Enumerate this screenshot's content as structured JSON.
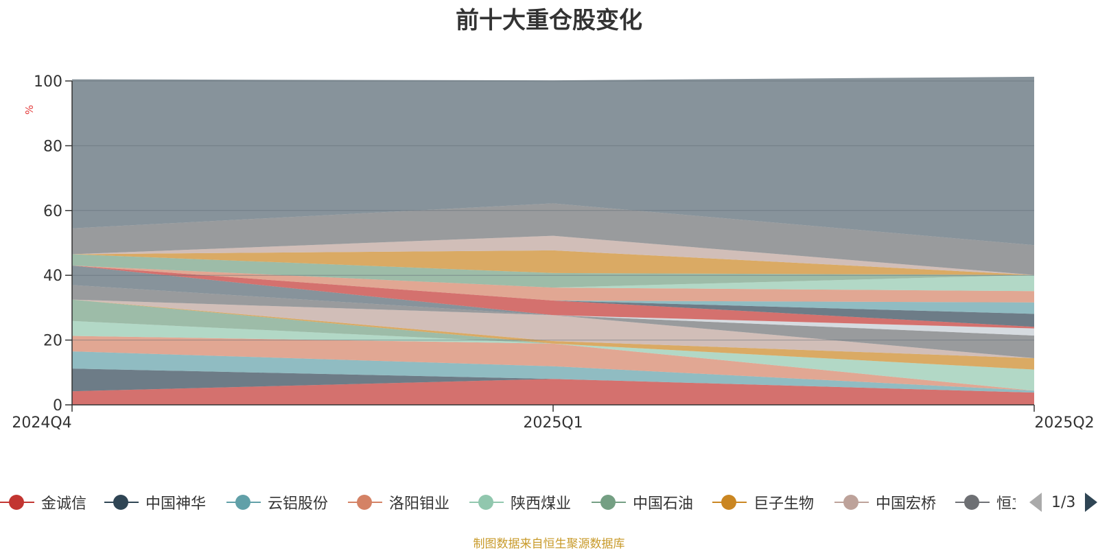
{
  "chart_data": {
    "type": "area",
    "stacked": true,
    "title": "前十大重仓股变化",
    "ylabel": "%",
    "ylim": [
      0,
      100
    ],
    "yticks": [
      0,
      20,
      40,
      60,
      80,
      100
    ],
    "categories": [
      "2024Q4",
      "2025Q1",
      "2025Q2"
    ],
    "series": [
      {
        "name": "金诚信",
        "color": "#c23531",
        "values": [
          4.2,
          8.0,
          3.8
        ]
      },
      {
        "name": "中国神华",
        "color": "#2f4554",
        "values": [
          7.0,
          0.0,
          0.0
        ]
      },
      {
        "name": "云铝股份",
        "color": "#61a0a8",
        "values": [
          5.3,
          3.9,
          0.6
        ]
      },
      {
        "name": "洛阳钼业",
        "color": "#d48265",
        "values": [
          4.8,
          7.0,
          0.0
        ]
      },
      {
        "name": "陕西煤业",
        "color": "#91c7ae",
        "values": [
          4.6,
          0.0,
          6.5
        ]
      },
      {
        "name": "中国石油",
        "color": "#749f83",
        "values": [
          6.6,
          0.0,
          0.0
        ]
      },
      {
        "name": "巨子生物",
        "color": "#ca8622",
        "values": [
          0.0,
          0.8,
          3.5
        ]
      },
      {
        "name": "中国宏桥",
        "color": "#bda29a",
        "values": [
          0.0,
          8.0,
          0.0
        ]
      },
      {
        "name": "恒立液压",
        "color": "#6e7074",
        "values": [
          4.5,
          0.0,
          7.0
        ]
      },
      {
        "name": "",
        "color": "#546570",
        "values": [
          6.0,
          0.0,
          0.0
        ]
      },
      {
        "name": "",
        "color": "#c4ccd3",
        "values": [
          0.0,
          0.0,
          2.2
        ]
      },
      {
        "name": "",
        "color": "#c23531",
        "values": [
          0.0,
          4.5,
          0.5
        ]
      },
      {
        "name": "",
        "color": "#2f4554",
        "values": [
          0.0,
          0.0,
          4.0
        ]
      },
      {
        "name": "",
        "color": "#61a0a8",
        "values": [
          0.0,
          0.0,
          3.5
        ]
      },
      {
        "name": "",
        "color": "#d48265",
        "values": [
          0.0,
          4.0,
          3.5
        ]
      },
      {
        "name": "",
        "color": "#91c7ae",
        "values": [
          0.0,
          0.0,
          5.0
        ]
      },
      {
        "name": "",
        "color": "#749f83",
        "values": [
          3.5,
          4.5,
          0.0
        ]
      },
      {
        "name": "",
        "color": "#ca8622",
        "values": [
          0.0,
          7.0,
          0.0
        ]
      },
      {
        "name": "",
        "color": "#bda29a",
        "values": [
          0.0,
          4.5,
          0.0
        ]
      },
      {
        "name": "",
        "color": "#6e7074",
        "values": [
          8.0,
          10.0,
          9.2
        ]
      },
      {
        "name": "",
        "color": "#546570",
        "values": [
          46.0,
          38.0,
          52.0
        ]
      }
    ]
  },
  "legend": {
    "visible_items": [
      {
        "name": "金诚信",
        "color": "#c23531"
      },
      {
        "name": "中国神华",
        "color": "#2f4554"
      },
      {
        "name": "云铝股份",
        "color": "#61a0a8"
      },
      {
        "name": "洛阳钼业",
        "color": "#d48265"
      },
      {
        "name": "陕西煤业",
        "color": "#91c7ae"
      },
      {
        "name": "中国石油",
        "color": "#749f83"
      },
      {
        "name": "巨子生物",
        "color": "#ca8622"
      },
      {
        "name": "中国宏桥",
        "color": "#bda29a"
      },
      {
        "name": "恒立液压",
        "color": "#6e7074"
      }
    ],
    "page_indicator": "1/3"
  },
  "source_note": "制图数据来自恒生聚源数据库"
}
